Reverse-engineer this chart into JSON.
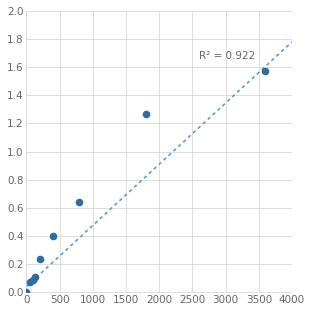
{
  "x": [
    0,
    50,
    100,
    125,
    200,
    400,
    800,
    1800,
    3600
  ],
  "y": [
    0.005,
    0.07,
    0.09,
    0.11,
    0.24,
    0.4,
    0.64,
    1.27,
    1.57
  ],
  "r2_text": "R² = 0.922",
  "r2_x": 2600,
  "r2_y": 1.68,
  "line_x": [
    0,
    4000
  ],
  "line_y": [
    0.04,
    1.78
  ],
  "dot_color": "#2e6da4",
  "line_color": "#5b9bd5",
  "xlim": [
    0,
    4000
  ],
  "ylim": [
    0,
    2
  ],
  "xticks": [
    0,
    500,
    1000,
    1500,
    2000,
    2500,
    3000,
    3500,
    4000
  ],
  "yticks": [
    0,
    0.2,
    0.4,
    0.6,
    0.8,
    1.0,
    1.2,
    1.4,
    1.6,
    1.8,
    2.0
  ],
  "grid_color": "#d8d8d8",
  "background_color": "#ffffff",
  "text_color": "#666666",
  "marker_size": 5.5,
  "tick_fontsize": 7.5,
  "annotation_fontsize": 7.5
}
